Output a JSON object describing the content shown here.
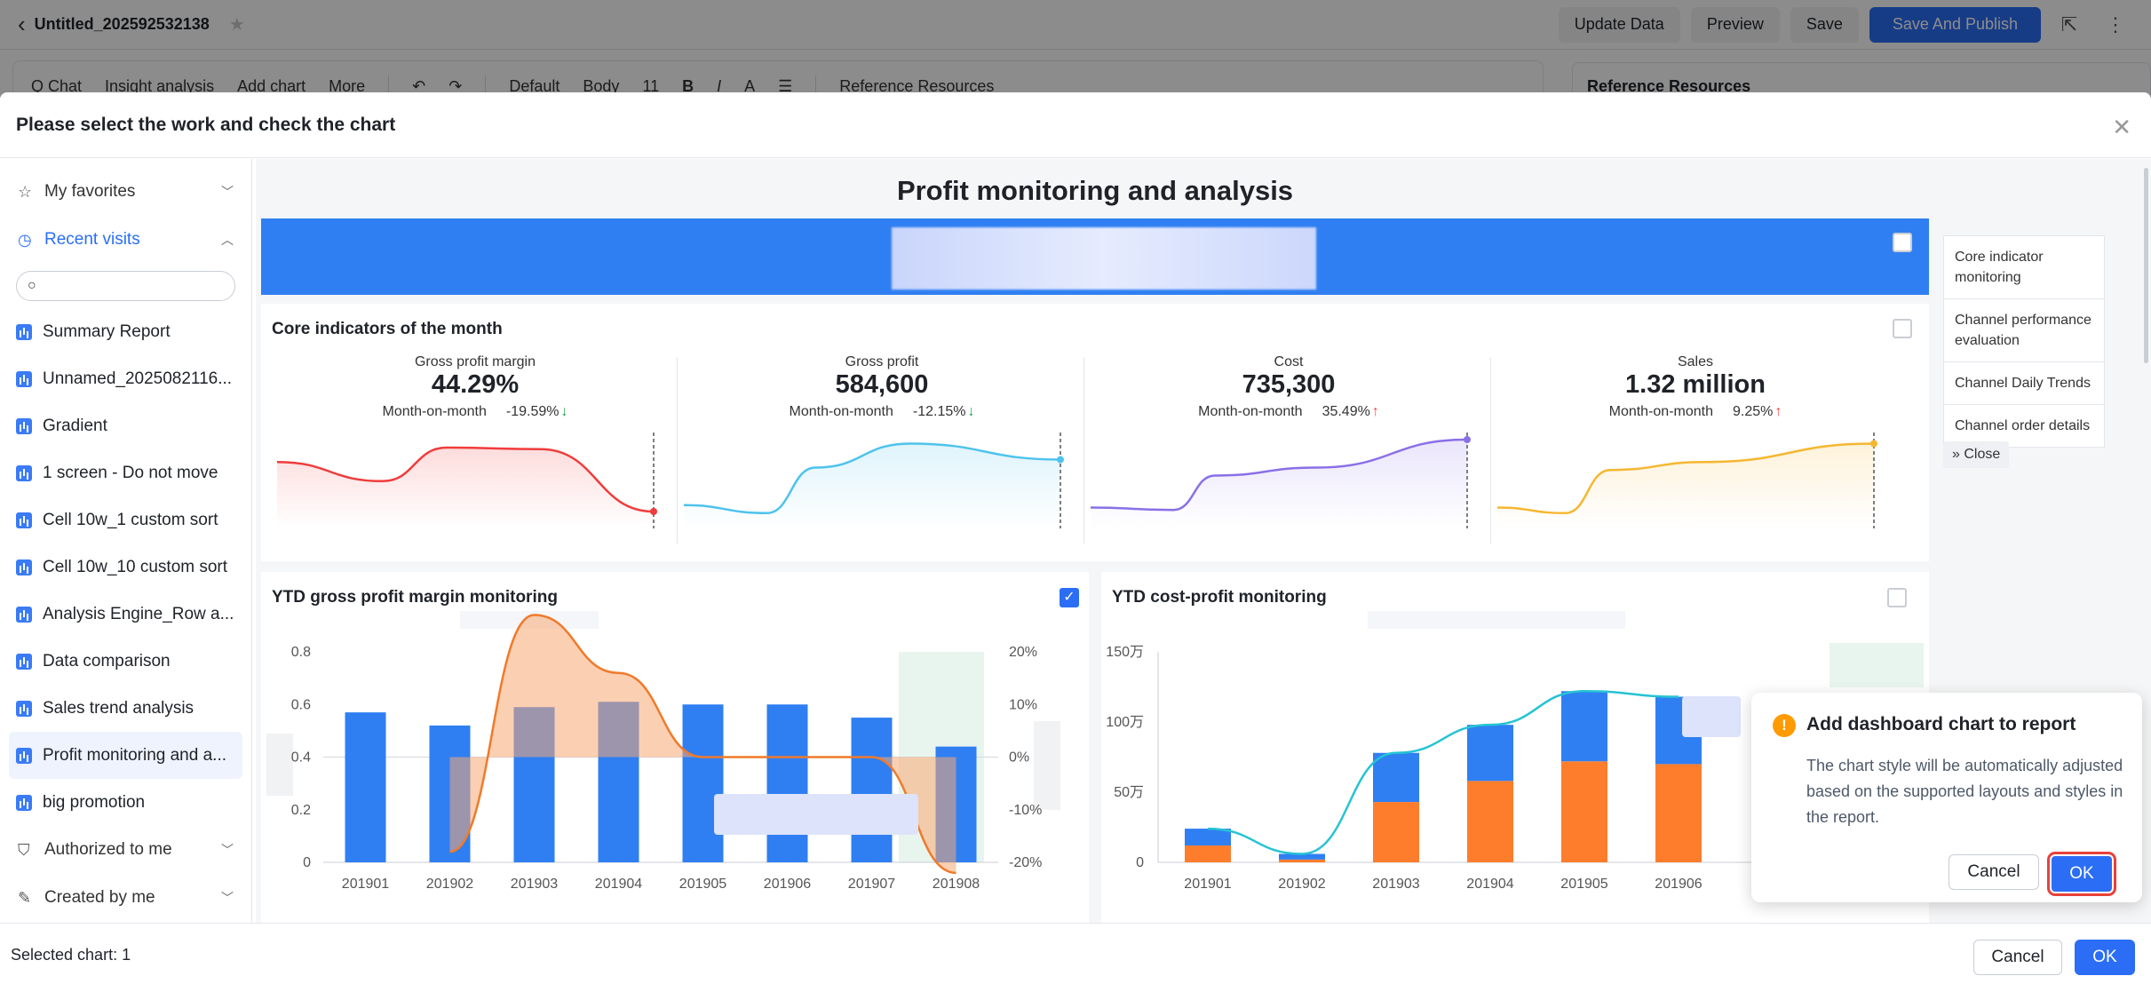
{
  "topbar": {
    "title": "Untitled_202592532138",
    "buttons": [
      "Update Data",
      "Preview",
      "Save",
      "Save And Publish"
    ]
  },
  "toolbar": {
    "items": [
      "Q Chat",
      "Insight analysis",
      "Add chart",
      "More",
      "Default",
      "Body",
      "11",
      "Reference Resources"
    ]
  },
  "reference_panel": {
    "title": "Reference Resources"
  },
  "modal": {
    "title": "Please select the work and check the chart",
    "sidebar": {
      "groups": {
        "favorites": "My favorites",
        "recent": "Recent visits",
        "authorized": "Authorized to me",
        "created": "Created by me"
      },
      "search_placeholder": "",
      "items": [
        "Summary Report",
        "Unnamed_2025082116...",
        "Gradient",
        "1 screen - Do not move",
        "Cell 10w_1 custom sort",
        "Cell 10w_10 custom sort",
        "Analysis Engine_Row a...",
        "Data comparison",
        "Sales trend analysis",
        "Profit monitoring and a...",
        "big promotion"
      ],
      "selected_index": 9
    },
    "dashboard": {
      "title": "Profit monitoring and analysis",
      "core_title": "Core indicators of the month",
      "kpis": [
        {
          "name": "Gross profit margin",
          "value": "44.29%",
          "mom_label": "Month-on-month",
          "mom": "-19.59%",
          "dir": "down",
          "color": "#f03c3c"
        },
        {
          "name": "Gross profit",
          "value": "584,600",
          "mom_label": "Month-on-month",
          "mom": "-12.15%",
          "dir": "down",
          "color": "#4ec3ec"
        },
        {
          "name": "Cost",
          "value": "735,300",
          "mom_label": "Month-on-month",
          "mom": "35.49%",
          "dir": "up",
          "color": "#8a6fe8"
        },
        {
          "name": "Sales",
          "value": "1.32 million",
          "mom_label": "Month-on-month",
          "mom": "9.25%",
          "dir": "up",
          "color": "#f5b731"
        }
      ],
      "nav": [
        "Core indicator monitoring",
        "Channel performance evaluation",
        "Channel Daily Trends",
        "Channel order details"
      ],
      "close_label": "Close"
    },
    "chart_data": [
      {
        "type": "bar",
        "title": "YTD gross profit margin monitoring",
        "categories": [
          "201901",
          "201902",
          "201903",
          "201904",
          "201905",
          "201906",
          "201907",
          "201908"
        ],
        "series": [
          {
            "values": [
              0.57,
              0.52,
              0.59,
              0.61,
              0.6,
              0.6,
              0.55,
              0.44
            ]
          },
          {
            "values": [
              null,
              -0.18,
              0.27,
              0.16,
              0.0,
              0.0,
              0.0,
              -0.22
            ]
          }
        ],
        "y_ticks": [
          "0.8",
          "0.6",
          "0.4",
          "0.2",
          "0"
        ],
        "y2_ticks": [
          "20%",
          "10%",
          "0%",
          "-10%",
          "-20%"
        ],
        "ylim": [
          0,
          0.8
        ],
        "y2lim": [
          -0.2,
          0.2
        ],
        "colors": [
          "#2f7ff2",
          "#f7a872"
        ]
      },
      {
        "type": "bar",
        "title": "YTD cost-profit monitoring",
        "categories": [
          "201901",
          "201902",
          "201903",
          "201904",
          "201905",
          "201906"
        ],
        "series": [
          {
            "values": [
              12,
              2,
              43,
              58,
              72,
              70
            ]
          },
          {
            "values": [
              12,
              4,
              35,
              40,
              50,
              48
            ]
          },
          {
            "values": [
              24,
              6,
              78,
              98,
              122,
              118
            ]
          }
        ],
        "y_ticks": [
          "150万",
          "100万",
          "50万",
          "0"
        ],
        "ylim": [
          0,
          150
        ],
        "colors": [
          "#fe7d2d",
          "#2f7ff2",
          "#26c3d3"
        ]
      }
    ],
    "footer": {
      "selected": "Selected chart: 1",
      "cancel": "Cancel",
      "ok": "OK"
    },
    "popup": {
      "title": "Add dashboard chart to report",
      "body": "The chart style will be automatically adjusted based on the supported layouts and styles in the report.",
      "cancel": "Cancel",
      "ok": "OK"
    }
  }
}
